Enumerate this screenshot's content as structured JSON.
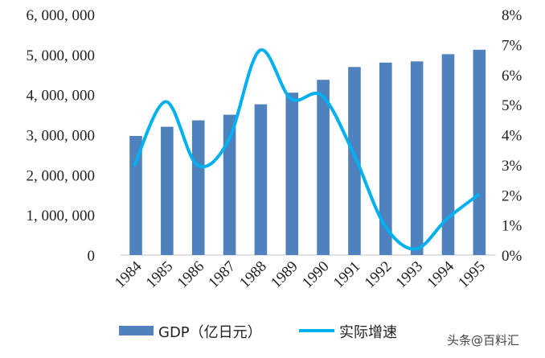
{
  "chart_data": {
    "type": "bar+line",
    "categories": [
      "1984",
      "1985",
      "1986",
      "1987",
      "1988",
      "1989",
      "1990",
      "1991",
      "1992",
      "1993",
      "1994",
      "1995"
    ],
    "series": [
      {
        "name": "GDP（亿日元）",
        "type": "bar",
        "axis": "left",
        "color": "#4f81bd",
        "values": [
          2970000,
          3200000,
          3360000,
          3500000,
          3760000,
          4050000,
          4370000,
          4690000,
          4800000,
          4830000,
          5010000,
          5120000
        ]
      },
      {
        "name": "实际增速",
        "type": "line",
        "axis": "right",
        "color": "#00b0f0",
        "values": [
          3.0,
          5.1,
          3.0,
          3.8,
          6.8,
          5.2,
          5.3,
          3.4,
          1.0,
          0.2,
          1.2,
          2.0
        ]
      }
    ],
    "left_axis": {
      "min": 0,
      "max": 6000000,
      "ticks": [
        "0",
        "1, 000, 000",
        "2, 000, 000",
        "3, 000, 000",
        "4, 000, 000",
        "5, 000, 000",
        "6, 000, 000"
      ]
    },
    "right_axis": {
      "min": 0,
      "max": 8,
      "unit": "%",
      "ticks": [
        "0%",
        "1%",
        "2%",
        "3%",
        "4%",
        "5%",
        "6%",
        "7%",
        "8%"
      ]
    },
    "grid": false,
    "legend": "bottom"
  },
  "watermark": "头条@百料汇"
}
